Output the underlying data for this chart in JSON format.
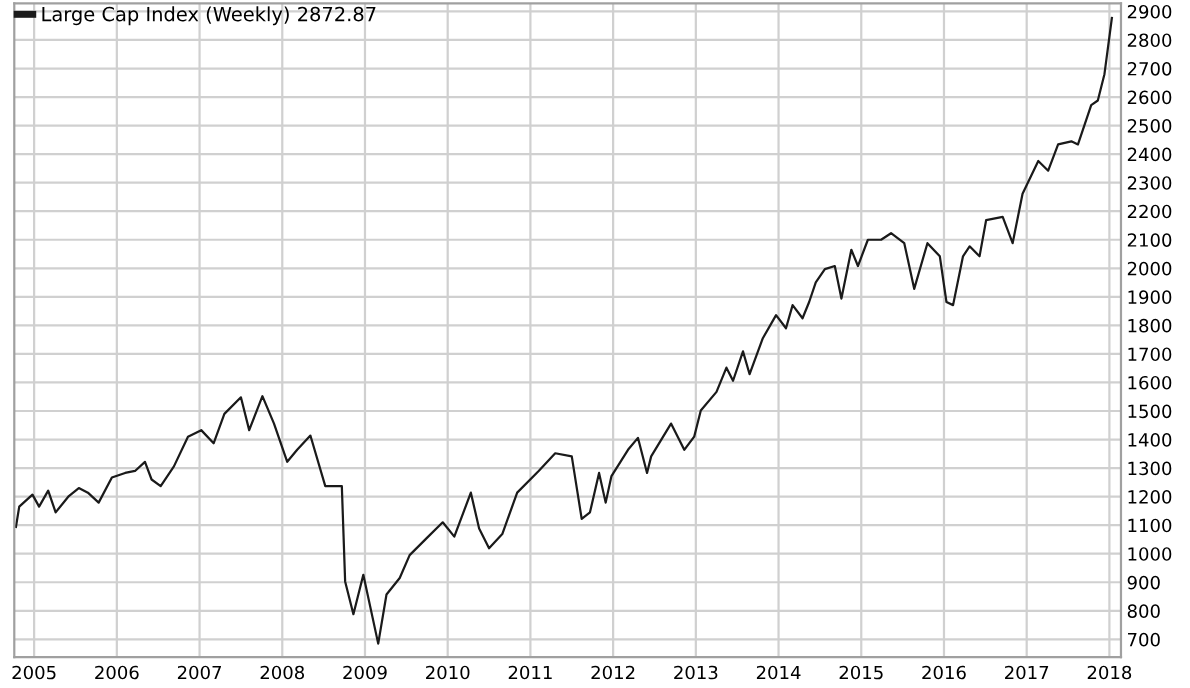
{
  "chart_data": {
    "type": "line",
    "x": [
      2004.78,
      2004.82,
      2004.98,
      2005.06,
      2005.17,
      2005.26,
      2005.42,
      2005.54,
      2005.65,
      2005.78,
      2005.94,
      2006.1,
      2006.22,
      2006.34,
      2006.42,
      2006.53,
      2006.69,
      2006.86,
      2007.02,
      2007.17,
      2007.3,
      2007.5,
      2007.6,
      2007.76,
      2007.9,
      2008.06,
      2008.18,
      2008.34,
      2008.52,
      2008.72,
      2008.76,
      2008.86,
      2008.98,
      2009.16,
      2009.26,
      2009.42,
      2009.54,
      2009.74,
      2009.94,
      2010.08,
      2010.28,
      2010.38,
      2010.5,
      2010.66,
      2010.84,
      2011.1,
      2011.3,
      2011.5,
      2011.62,
      2011.72,
      2011.83,
      2011.91,
      2011.98,
      2012.18,
      2012.3,
      2012.41,
      2012.46,
      2012.7,
      2012.86,
      2012.98,
      2013.06,
      2013.25,
      2013.37,
      2013.45,
      2013.57,
      2013.65,
      2013.81,
      2013.97,
      2014.09,
      2014.17,
      2014.29,
      2014.37,
      2014.45,
      2014.56,
      2014.68,
      2014.76,
      2014.88,
      2014.96,
      2015.08,
      2015.24,
      2015.36,
      2015.52,
      2015.64,
      2015.8,
      2015.95,
      2016.03,
      2016.11,
      2016.23,
      2016.31,
      2016.43,
      2016.51,
      2016.71,
      2016.83,
      2016.95,
      2017.14,
      2017.26,
      2017.38,
      2017.54,
      2017.62,
      2017.78,
      2017.86,
      2017.94,
      2018.03
    ],
    "series": [
      {
        "name": "Large Cap Index (Weekly) 2872.87",
        "color": "#1a1a1a",
        "values": [
          1094,
          1165,
          1207,
          1165,
          1221,
          1145,
          1202,
          1230,
          1214,
          1179,
          1267,
          1283,
          1290,
          1322,
          1260,
          1237,
          1306,
          1410,
          1433,
          1387,
          1490,
          1548,
          1433,
          1552,
          1456,
          1322,
          1364,
          1414,
          1237,
          1237,
          903,
          788,
          926,
          685,
          857,
          915,
          995,
          1053,
          1110,
          1060,
          1214,
          1088,
          1019,
          1069,
          1214,
          1290,
          1352,
          1341,
          1122,
          1145,
          1283,
          1179,
          1272,
          1364,
          1406,
          1283,
          1341,
          1456,
          1364,
          1410,
          1502,
          1567,
          1652,
          1606,
          1709,
          1629,
          1755,
          1836,
          1790,
          1871,
          1825,
          1882,
          1951,
          1997,
          2008,
          1894,
          2065,
          2008,
          2100,
          2100,
          2123,
          2088,
          1928,
          2088,
          2042,
          1882,
          1871,
          2042,
          2077,
          2042,
          2169,
          2180,
          2088,
          2261,
          2376,
          2342,
          2434,
          2445,
          2434,
          2572,
          2588,
          2680,
          2877
        ]
      }
    ],
    "xlim": [
      2004.76,
      2018.14
    ],
    "xticks": [
      2005,
      2006,
      2007,
      2008,
      2009,
      2010,
      2011,
      2012,
      2013,
      2014,
      2015,
      2016,
      2017,
      2018
    ],
    "ylim": [
      638,
      2928
    ],
    "yticks": [
      700,
      800,
      900,
      1000,
      1100,
      1200,
      1300,
      1400,
      1500,
      1600,
      1700,
      1800,
      1900,
      2000,
      2100,
      2200,
      2300,
      2400,
      2500,
      2600,
      2700,
      2800,
      2900
    ],
    "grid": true,
    "legend": "top left",
    "marker": "none",
    "line_style": "solid"
  }
}
